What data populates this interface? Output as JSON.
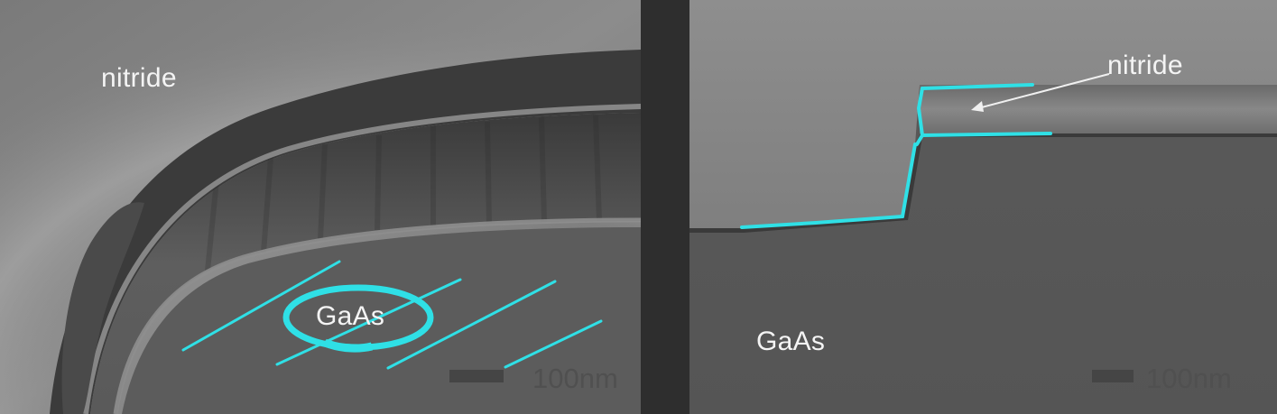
{
  "left_panel": {
    "label_top": "nitride",
    "label_center": "GaAs",
    "scale_label": "100nm"
  },
  "right_panel": {
    "label_top": "nitride",
    "label_bottom": "GaAs",
    "scale_label": "100nm"
  },
  "colors": {
    "annotation": "#2fe0e6",
    "background": "#2e2e2e"
  }
}
